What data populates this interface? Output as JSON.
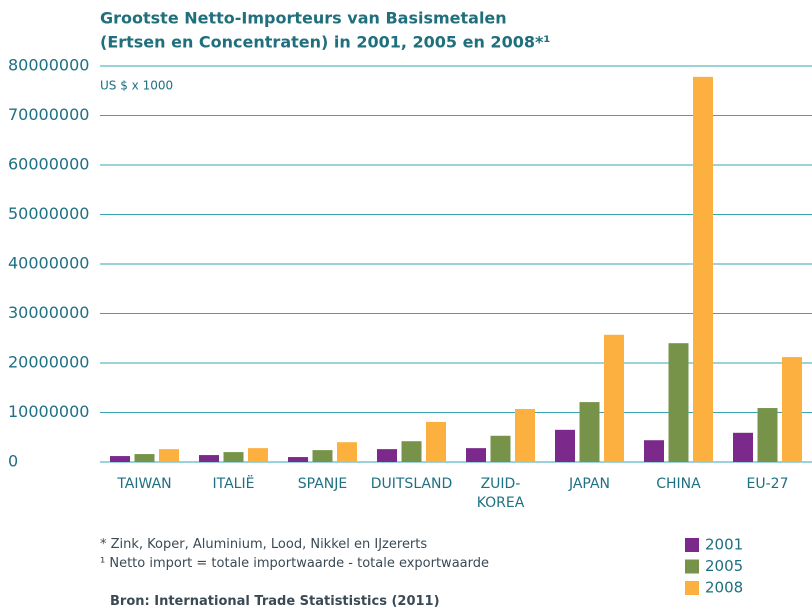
{
  "chart_data": {
    "type": "bar",
    "title": [
      "Grootste Netto-Importeurs van Basismetalen",
      "(Ertsen en Concentraten) in 2001, 2005 en 2008*¹"
    ],
    "y_unit": "US $ x 1000",
    "categories": [
      "TAIWAN",
      "ITALIË",
      "SPANJE",
      "DUITSLAND",
      "ZUID-\nKOREA",
      "JAPAN",
      "CHINA",
      "EU-27"
    ],
    "series": [
      {
        "name": "2001",
        "color": "#7b2a8c",
        "values": [
          1200000,
          1400000,
          1000000,
          2600000,
          2800000,
          6500000,
          4400000,
          5900000
        ]
      },
      {
        "name": "2005",
        "color": "#77934a",
        "values": [
          1600000,
          2000000,
          2400000,
          4200000,
          5300000,
          12100000,
          24000000,
          10900000
        ]
      },
      {
        "name": "2008",
        "color": "#fbb040",
        "values": [
          2600000,
          2800000,
          4000000,
          8100000,
          10700000,
          25700000,
          77800000,
          21200000
        ]
      }
    ],
    "ylim": [
      0,
      80000000
    ],
    "yticks": [
      0,
      10000000,
      20000000,
      30000000,
      40000000,
      50000000,
      60000000,
      70000000,
      80000000
    ],
    "grid": true,
    "notes": [
      "* Zink, Koper, Aluminium, Lood, Nikkel en IJzererts",
      "¹ Netto import = totale importwaarde - totale exportwaarde"
    ],
    "source": "Bron: International Trade Statististics (2011)"
  }
}
